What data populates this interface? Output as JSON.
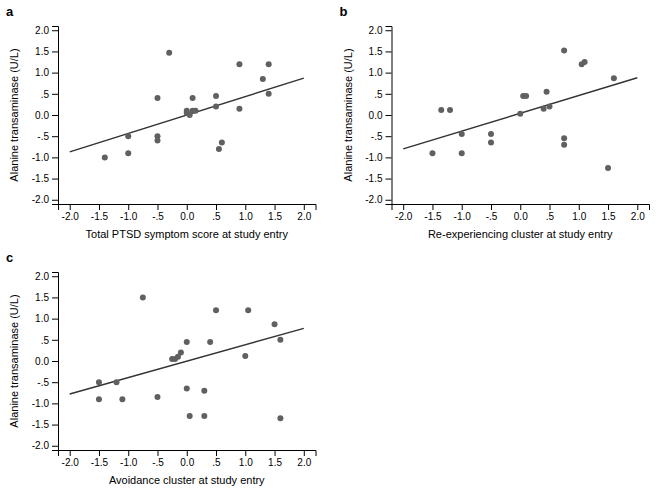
{
  "chart_data": [
    {
      "type": "scatter",
      "title": "a",
      "xlabel": "Total PTSD symptom score at study entry",
      "ylabel": "Alanine transaminase (U/L)",
      "series": [
        {
          "type": "scatter",
          "color": "#606060",
          "x": [
            -1.4,
            -1.0,
            -1.0,
            -0.5,
            -0.5,
            -0.5,
            -0.3,
            0.0,
            0.0,
            0.05,
            0.1,
            0.1,
            0.15,
            0.5,
            0.5,
            0.55,
            0.6,
            0.9,
            0.9,
            1.3,
            1.4,
            1.4
          ],
          "values": [
            -1.0,
            -0.5,
            -0.9,
            -0.5,
            -0.6,
            0.4,
            1.47,
            0.05,
            0.1,
            0.0,
            0.1,
            0.4,
            0.1,
            0.2,
            0.45,
            -0.8,
            -0.65,
            1.2,
            0.15,
            0.85,
            1.2,
            0.5
          ]
        },
        {
          "type": "line",
          "color": "#333333",
          "x": [
            -2.0,
            2.0
          ],
          "values": [
            -0.87,
            0.87
          ]
        }
      ],
      "xlim": [
        -2.2,
        2.2
      ],
      "ylim": [
        -2.1,
        2.1
      ],
      "xticks": [
        {
          "value": -2.0,
          "label": "-2.0"
        },
        {
          "value": -1.5,
          "label": "-1.5"
        },
        {
          "value": -1.0,
          "label": "-1.0"
        },
        {
          "value": -0.5,
          "label": "-.5"
        },
        {
          "value": 0.0,
          "label": "0.0"
        },
        {
          "value": 0.5,
          "label": ".5"
        },
        {
          "value": 1.0,
          "label": "1.0"
        },
        {
          "value": 1.5,
          "label": "1.5"
        },
        {
          "value": 2.0,
          "label": "2.0"
        }
      ],
      "yticks": [
        {
          "value": -2.0,
          "label": "-2.0"
        },
        {
          "value": -1.5,
          "label": "-1.5"
        },
        {
          "value": -1.0,
          "label": "-1.0"
        },
        {
          "value": -0.5,
          "label": "-.5"
        },
        {
          "value": 0.0,
          "label": "0.0"
        },
        {
          "value": 0.5,
          "label": ".5"
        },
        {
          "value": 1.0,
          "label": "1.0"
        },
        {
          "value": 1.5,
          "label": "1.5"
        },
        {
          "value": 2.0,
          "label": "2.0"
        }
      ],
      "grid": false
    },
    {
      "type": "scatter",
      "title": "b",
      "xlabel": "Re-experiencing cluster at study entry",
      "ylabel": "Alanine transaminase (U/L)",
      "series": [
        {
          "type": "scatter",
          "color": "#606060",
          "x": [
            -1.5,
            -1.35,
            -1.2,
            -1.0,
            -1.0,
            -0.5,
            -0.5,
            0.0,
            0.05,
            0.1,
            0.4,
            0.45,
            0.5,
            0.75,
            0.75,
            0.75,
            1.05,
            1.1,
            1.5,
            1.6
          ],
          "values": [
            -0.9,
            0.12,
            0.12,
            -0.45,
            -0.9,
            -0.45,
            -0.65,
            0.03,
            0.45,
            0.45,
            0.15,
            0.55,
            0.2,
            -0.7,
            -0.55,
            1.52,
            1.2,
            1.25,
            -1.25,
            0.87
          ]
        },
        {
          "type": "line",
          "color": "#333333",
          "x": [
            -2.0,
            2.0
          ],
          "values": [
            -0.8,
            0.88
          ]
        }
      ],
      "xlim": [
        -2.2,
        2.2
      ],
      "ylim": [
        -2.1,
        2.1
      ],
      "xticks": [
        {
          "value": -2.0,
          "label": "-2.0"
        },
        {
          "value": -1.5,
          "label": "-1.5"
        },
        {
          "value": -1.0,
          "label": "-1.0"
        },
        {
          "value": -0.5,
          "label": "-.5"
        },
        {
          "value": 0.0,
          "label": "0.0"
        },
        {
          "value": 0.5,
          "label": ".5"
        },
        {
          "value": 1.0,
          "label": "1.0"
        },
        {
          "value": 1.5,
          "label": "1.5"
        },
        {
          "value": 2.0,
          "label": "2.0"
        }
      ],
      "yticks": [
        {
          "value": -2.0,
          "label": "-2.0"
        },
        {
          "value": -1.5,
          "label": "-1.5"
        },
        {
          "value": -1.0,
          "label": "-1.0"
        },
        {
          "value": -0.5,
          "label": "-.5"
        },
        {
          "value": 0.0,
          "label": "0.0"
        },
        {
          "value": 0.5,
          "label": ".5"
        },
        {
          "value": 1.0,
          "label": "1.0"
        },
        {
          "value": 1.5,
          "label": "1.5"
        },
        {
          "value": 2.0,
          "label": "2.0"
        }
      ],
      "grid": false
    },
    {
      "type": "scatter",
      "title": "c",
      "xlabel": "Avoidance cluster at study entry",
      "ylabel": "Alanine transaminase (U/L)",
      "series": [
        {
          "type": "scatter",
          "color": "#606060",
          "x": [
            -1.5,
            -1.5,
            -1.2,
            -1.1,
            -0.75,
            -0.5,
            -0.25,
            -0.2,
            -0.15,
            -0.1,
            0.0,
            0.0,
            0.05,
            0.3,
            0.3,
            0.4,
            0.5,
            1.0,
            1.05,
            1.5,
            1.6,
            1.6
          ],
          "values": [
            -0.5,
            -0.9,
            -0.5,
            -0.9,
            1.5,
            -0.85,
            0.05,
            0.05,
            0.1,
            0.2,
            0.45,
            -0.65,
            -1.3,
            -0.7,
            -1.3,
            0.45,
            1.2,
            0.12,
            1.2,
            0.87,
            0.5,
            -1.35
          ]
        },
        {
          "type": "line",
          "color": "#333333",
          "x": [
            -2.0,
            2.0
          ],
          "values": [
            -0.78,
            0.77
          ]
        }
      ],
      "xlim": [
        -2.2,
        2.2
      ],
      "ylim": [
        -2.1,
        2.1
      ],
      "xticks": [
        {
          "value": -2.0,
          "label": "-2.0"
        },
        {
          "value": -1.5,
          "label": "-1.5"
        },
        {
          "value": -1.0,
          "label": "-1.0"
        },
        {
          "value": -0.5,
          "label": "-.5"
        },
        {
          "value": 0.0,
          "label": "0.0"
        },
        {
          "value": 0.5,
          "label": ".5"
        },
        {
          "value": 1.0,
          "label": "1.0"
        },
        {
          "value": 1.5,
          "label": "1.5"
        },
        {
          "value": 2.0,
          "label": "2.0"
        }
      ],
      "yticks": [
        {
          "value": -2.0,
          "label": "-2.0"
        },
        {
          "value": -1.5,
          "label": "-1.5"
        },
        {
          "value": -1.0,
          "label": "-1.0"
        },
        {
          "value": -0.5,
          "label": "-.5"
        },
        {
          "value": 0.0,
          "label": "0.0"
        },
        {
          "value": 0.5,
          "label": ".5"
        },
        {
          "value": 1.0,
          "label": "1.0"
        },
        {
          "value": 1.5,
          "label": "1.5"
        },
        {
          "value": 2.0,
          "label": "2.0"
        }
      ],
      "grid": false
    }
  ]
}
